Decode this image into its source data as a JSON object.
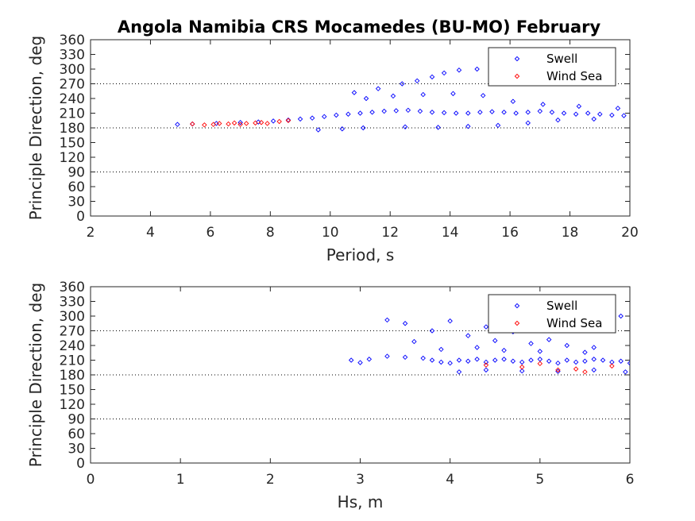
{
  "title": "Angola Namibia CRS Mocamedes (BU-MO) February",
  "chart_data": [
    {
      "type": "scatter",
      "xlabel": "Period, s",
      "ylabel": "Principle Direction, deg",
      "xlim": [
        2,
        20
      ],
      "ylim": [
        0,
        360
      ],
      "xticks": [
        "2",
        "4",
        "6",
        "8",
        "10",
        "12",
        "14",
        "16",
        "18",
        "20"
      ],
      "yticks": [
        "0",
        "30",
        "60",
        "90",
        "120",
        "150",
        "180",
        "210",
        "240",
        "270",
        "300",
        "330",
        "360"
      ],
      "reference_lines": [
        90,
        180,
        270
      ],
      "legend_position": "top-right",
      "series": [
        {
          "name": "Swell",
          "color": "#0000ff",
          "marker": "diamond",
          "points": [
            [
              4.9,
              187
            ],
            [
              5.4,
              188
            ],
            [
              6.2,
              189
            ],
            [
              7.0,
              191
            ],
            [
              7.6,
              192
            ],
            [
              8.1,
              194
            ],
            [
              8.6,
              196
            ],
            [
              9.0,
              198
            ],
            [
              9.4,
              200
            ],
            [
              9.8,
              203
            ],
            [
              10.2,
              206
            ],
            [
              10.6,
              208
            ],
            [
              11.0,
              210
            ],
            [
              11.4,
              212
            ],
            [
              11.8,
              214
            ],
            [
              12.2,
              215
            ],
            [
              12.6,
              216
            ],
            [
              13.0,
              214
            ],
            [
              13.4,
              212
            ],
            [
              13.8,
              211
            ],
            [
              14.2,
              210
            ],
            [
              14.6,
              210
            ],
            [
              15.0,
              212
            ],
            [
              15.4,
              213
            ],
            [
              15.8,
              212
            ],
            [
              16.2,
              210
            ],
            [
              16.6,
              212
            ],
            [
              17.0,
              214
            ],
            [
              17.4,
              212
            ],
            [
              17.8,
              210
            ],
            [
              18.2,
              208
            ],
            [
              18.6,
              210
            ],
            [
              19.0,
              208
            ],
            [
              19.4,
              206
            ],
            [
              19.8,
              205
            ],
            [
              10.8,
              252
            ],
            [
              11.6,
              260
            ],
            [
              12.4,
              270
            ],
            [
              12.9,
              276
            ],
            [
              13.4,
              284
            ],
            [
              13.8,
              292
            ],
            [
              14.3,
              298
            ],
            [
              14.9,
              300
            ],
            [
              15.4,
              301
            ],
            [
              15.8,
              298
            ],
            [
              11.2,
              240
            ],
            [
              12.1,
              245
            ],
            [
              13.1,
              248
            ],
            [
              14.1,
              250
            ],
            [
              15.1,
              246
            ],
            [
              16.1,
              234
            ],
            [
              17.1,
              228
            ],
            [
              18.3,
              224
            ],
            [
              19.6,
              220
            ],
            [
              9.6,
              176
            ],
            [
              10.4,
              178
            ],
            [
              11.1,
              180
            ],
            [
              12.5,
              182
            ],
            [
              13.6,
              181
            ],
            [
              14.6,
              183
            ],
            [
              15.6,
              185
            ],
            [
              16.6,
              190
            ],
            [
              17.6,
              196
            ],
            [
              18.8,
              198
            ]
          ]
        },
        {
          "name": "Wind Sea",
          "color": "#ff0000",
          "marker": "diamond",
          "points": [
            [
              5.4,
              188
            ],
            [
              5.8,
              186
            ],
            [
              6.1,
              187
            ],
            [
              6.3,
              189
            ],
            [
              6.6,
              188
            ],
            [
              6.8,
              190
            ],
            [
              7.0,
              187
            ],
            [
              7.2,
              189
            ],
            [
              7.5,
              190
            ],
            [
              7.7,
              191
            ],
            [
              7.9,
              189
            ],
            [
              8.3,
              193
            ],
            [
              8.6,
              195
            ]
          ]
        }
      ]
    },
    {
      "type": "scatter",
      "xlabel": "Hs, m",
      "ylabel": "Principle Direction, deg",
      "xlim": [
        0,
        6
      ],
      "ylim": [
        0,
        360
      ],
      "xticks": [
        "0",
        "1",
        "2",
        "3",
        "4",
        "5",
        "6"
      ],
      "yticks": [
        "0",
        "30",
        "60",
        "90",
        "120",
        "150",
        "180",
        "210",
        "240",
        "270",
        "300",
        "330",
        "360"
      ],
      "reference_lines": [
        90,
        180,
        270
      ],
      "legend_position": "top-right",
      "series": [
        {
          "name": "Swell",
          "color": "#0000ff",
          "marker": "diamond",
          "points": [
            [
              2.9,
              210
            ],
            [
              3.0,
              205
            ],
            [
              3.1,
              212
            ],
            [
              3.3,
              218
            ],
            [
              3.5,
              216
            ],
            [
              3.7,
              214
            ],
            [
              3.8,
              210
            ],
            [
              3.9,
              206
            ],
            [
              4.0,
              204
            ],
            [
              4.1,
              210
            ],
            [
              4.2,
              208
            ],
            [
              4.3,
              212
            ],
            [
              4.4,
              206
            ],
            [
              4.5,
              210
            ],
            [
              4.6,
              212
            ],
            [
              4.7,
              208
            ],
            [
              4.8,
              206
            ],
            [
              4.9,
              210
            ],
            [
              5.0,
              212
            ],
            [
              5.1,
              208
            ],
            [
              5.2,
              204
            ],
            [
              5.3,
              210
            ],
            [
              5.4,
              206
            ],
            [
              5.5,
              208
            ],
            [
              5.6,
              212
            ],
            [
              5.7,
              210
            ],
            [
              5.8,
              206
            ],
            [
              5.9,
              208
            ],
            [
              6.0,
              204
            ],
            [
              3.3,
              292
            ],
            [
              3.5,
              285
            ],
            [
              3.8,
              270
            ],
            [
              4.0,
              290
            ],
            [
              4.2,
              260
            ],
            [
              4.4,
              278
            ],
            [
              4.5,
              250
            ],
            [
              4.7,
              268
            ],
            [
              4.9,
              244
            ],
            [
              5.1,
              252
            ],
            [
              5.3,
              240
            ],
            [
              5.6,
              236
            ],
            [
              5.9,
              300
            ],
            [
              3.6,
              248
            ],
            [
              3.9,
              232
            ],
            [
              4.3,
              236
            ],
            [
              4.6,
              230
            ],
            [
              5.0,
              228
            ],
            [
              5.5,
              226
            ],
            [
              4.1,
              186
            ],
            [
              4.4,
              190
            ],
            [
              4.8,
              188
            ],
            [
              5.2,
              187
            ],
            [
              5.6,
              190
            ],
            [
              5.95,
              186
            ]
          ]
        },
        {
          "name": "Wind Sea",
          "color": "#ff0000",
          "marker": "diamond",
          "points": [
            [
              4.4,
              200
            ],
            [
              4.8,
              196
            ],
            [
              5.0,
              203
            ],
            [
              5.2,
              190
            ],
            [
              5.4,
              192
            ],
            [
              5.5,
              186
            ],
            [
              5.8,
              198
            ]
          ]
        }
      ]
    }
  ]
}
